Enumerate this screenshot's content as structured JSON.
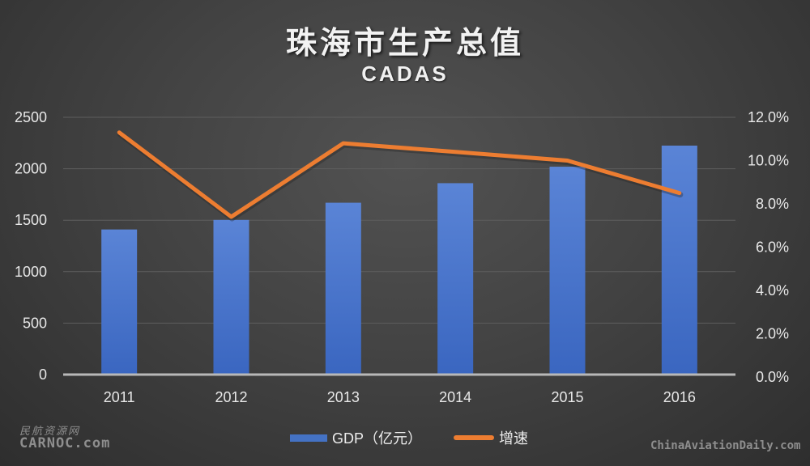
{
  "title": "珠海市生产总值",
  "subtitle": "CADAS",
  "legend": {
    "bar_label": "GDP（亿元）",
    "line_label": "增速"
  },
  "watermarks": {
    "left_cn": "民航资源网",
    "left_en": "CARNOC.com",
    "right": "ChinaAviationDaily.com"
  },
  "colors": {
    "bar": "#4472c4",
    "line": "#ed7d31",
    "background": "#434343"
  },
  "chart_data": {
    "type": "bar+line",
    "title": "珠海市生产总值",
    "subtitle": "CADAS",
    "categories": [
      "2011",
      "2012",
      "2013",
      "2014",
      "2015",
      "2016"
    ],
    "series": [
      {
        "name": "GDP（亿元）",
        "type": "bar",
        "axis": "left",
        "values": [
          1410,
          1503,
          1670,
          1860,
          2020,
          2225
        ]
      },
      {
        "name": "增速",
        "type": "line",
        "axis": "right",
        "values": [
          11.3,
          7.4,
          10.8,
          10.4,
          10.0,
          8.5
        ],
        "unit": "%"
      }
    ],
    "left_axis": {
      "ylim": [
        0,
        2500
      ],
      "ticks": [
        "0",
        "500",
        "1000",
        "1500",
        "2000",
        "2500"
      ]
    },
    "right_axis": {
      "ylim": [
        0,
        12
      ],
      "ticks": [
        "0.0%",
        "2.0%",
        "4.0%",
        "6.0%",
        "8.0%",
        "10.0%",
        "12.0%"
      ]
    },
    "grid": true,
    "legend_position": "bottom"
  }
}
